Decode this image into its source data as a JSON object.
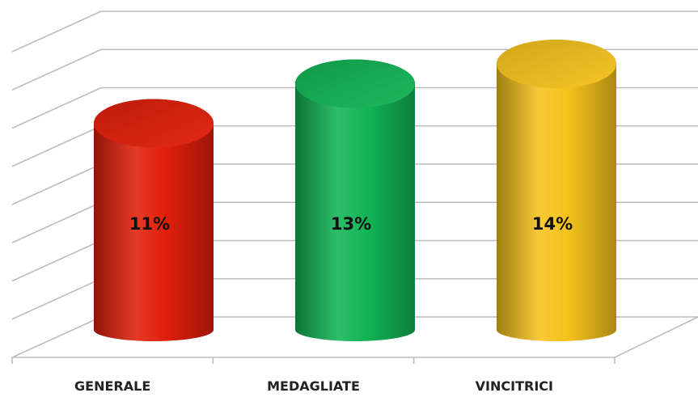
{
  "chart_data": {
    "type": "bar",
    "style": "3d-cylinder",
    "categories": [
      "GENERALE",
      "MEDAGLIATE",
      "VINCITRICI"
    ],
    "values": [
      11,
      13,
      14
    ],
    "value_labels": [
      "11%",
      "13%",
      "14%"
    ],
    "colors": [
      "#e01f0a",
      "#12b455",
      "#f5c21c"
    ],
    "grid": true,
    "legend": "none",
    "ylim": [
      0,
      16
    ]
  }
}
